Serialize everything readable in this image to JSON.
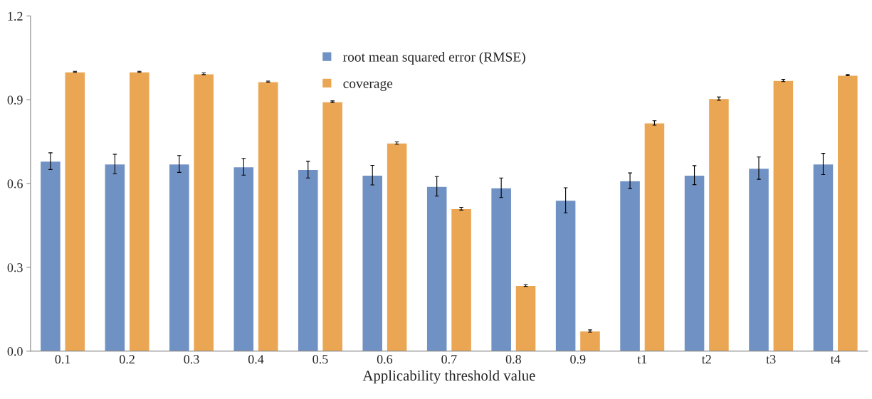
{
  "chart_data": {
    "type": "bar",
    "xlabel": "Applicability threshold value",
    "categories": [
      "0.1",
      "0.2",
      "0.3",
      "0.4",
      "0.5",
      "0.6",
      "0.7",
      "0.8",
      "0.9",
      "t1",
      "t2",
      "t3",
      "t4"
    ],
    "series": [
      {
        "name": "root mean squared error (RMSE)",
        "color": "#7091c3",
        "values": [
          0.68,
          0.67,
          0.67,
          0.66,
          0.65,
          0.63,
          0.59,
          0.585,
          0.54,
          0.61,
          0.63,
          0.655,
          0.67
        ],
        "errors": [
          0.03,
          0.035,
          0.03,
          0.03,
          0.03,
          0.035,
          0.035,
          0.035,
          0.045,
          0.028,
          0.034,
          0.04,
          0.038
        ]
      },
      {
        "name": "coverage",
        "color": "#eaa653",
        "values": [
          1.0,
          1.0,
          0.993,
          0.965,
          0.893,
          0.745,
          0.51,
          0.235,
          0.072,
          0.817,
          0.904,
          0.969,
          0.988
        ],
        "errors": [
          0.002,
          0.002,
          0.003,
          0.002,
          0.003,
          0.004,
          0.005,
          0.003,
          0.004,
          0.008,
          0.006,
          0.004,
          0.002
        ]
      }
    ],
    "ylim": [
      0,
      1.2
    ],
    "yticks": [
      {
        "value": 0,
        "label": "0.0"
      },
      {
        "value": 0.3,
        "label": "0.3"
      },
      {
        "value": 0.6,
        "label": "0.6"
      },
      {
        "value": 0.9,
        "label": "0.9"
      },
      {
        "value": 1.2,
        "label": "1.2"
      }
    ],
    "grid": false,
    "legend": "top"
  }
}
